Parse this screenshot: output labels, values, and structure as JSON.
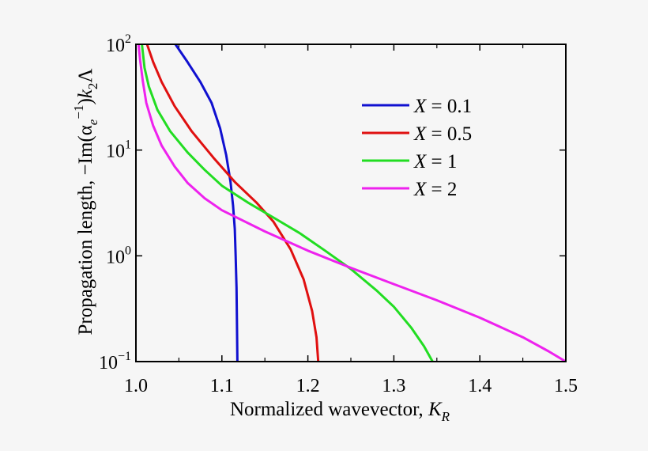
{
  "chart_data": {
    "type": "line",
    "title": "",
    "xlabel": "Normalized wavevector, K_R",
    "ylabel": "Propagation length, −Im(α_e^−1)k_2Λ",
    "xlim": [
      1.0,
      1.5
    ],
    "ylim": [
      0.1,
      100
    ],
    "yscale": "log",
    "grid": false,
    "legend_position": "top-right",
    "x_ticks": [
      1.0,
      1.1,
      1.2,
      1.3,
      1.4,
      1.5
    ],
    "x_tick_labels": [
      "1.0",
      "1.1",
      "1.2",
      "1.3",
      "1.4",
      "1.5"
    ],
    "y_ticks": [
      {
        "value": 0.1,
        "base": "10",
        "exp": "−1"
      },
      {
        "value": 1,
        "base": "10",
        "exp": "0"
      },
      {
        "value": 10,
        "base": "10",
        "exp": "1"
      },
      {
        "value": 100,
        "base": "10",
        "exp": "2"
      }
    ],
    "series": [
      {
        "name": "X = 0.1",
        "color": "#1010d0",
        "points": [
          [
            1.046,
            100
          ],
          [
            1.06,
            68
          ],
          [
            1.075,
            44
          ],
          [
            1.088,
            28
          ],
          [
            1.098,
            16
          ],
          [
            1.105,
            9
          ],
          [
            1.11,
            5
          ],
          [
            1.113,
            3
          ],
          [
            1.115,
            1.8
          ],
          [
            1.116,
            1.0
          ],
          [
            1.117,
            0.5
          ],
          [
            1.1175,
            0.25
          ],
          [
            1.118,
            0.1
          ]
        ]
      },
      {
        "name": "X = 0.5",
        "color": "#e01010",
        "points": [
          [
            1.013,
            100
          ],
          [
            1.02,
            68
          ],
          [
            1.03,
            44
          ],
          [
            1.045,
            26
          ],
          [
            1.065,
            15
          ],
          [
            1.09,
            8.5
          ],
          [
            1.115,
            5.0
          ],
          [
            1.14,
            3.2
          ],
          [
            1.16,
            2.1
          ],
          [
            1.18,
            1.15
          ],
          [
            1.195,
            0.6
          ],
          [
            1.205,
            0.3
          ],
          [
            1.21,
            0.17
          ],
          [
            1.212,
            0.1
          ]
        ]
      },
      {
        "name": "X = 1",
        "color": "#22dd22",
        "points": [
          [
            1.007,
            100
          ],
          [
            1.01,
            60
          ],
          [
            1.015,
            40
          ],
          [
            1.025,
            24
          ],
          [
            1.04,
            15
          ],
          [
            1.06,
            9.5
          ],
          [
            1.08,
            6.5
          ],
          [
            1.1,
            4.6
          ],
          [
            1.13,
            3.2
          ],
          [
            1.16,
            2.3
          ],
          [
            1.19,
            1.65
          ],
          [
            1.22,
            1.12
          ],
          [
            1.25,
            0.75
          ],
          [
            1.28,
            0.47
          ],
          [
            1.3,
            0.33
          ],
          [
            1.32,
            0.21
          ],
          [
            1.335,
            0.14
          ],
          [
            1.345,
            0.1
          ]
        ]
      },
      {
        "name": "X = 2",
        "color": "#ee22ee",
        "points": [
          [
            1.003,
            100
          ],
          [
            1.005,
            70
          ],
          [
            1.008,
            45
          ],
          [
            1.012,
            28
          ],
          [
            1.02,
            17
          ],
          [
            1.03,
            11
          ],
          [
            1.045,
            7
          ],
          [
            1.06,
            4.9
          ],
          [
            1.08,
            3.5
          ],
          [
            1.1,
            2.7
          ],
          [
            1.15,
            1.7
          ],
          [
            1.2,
            1.12
          ],
          [
            1.25,
            0.77
          ],
          [
            1.3,
            0.54
          ],
          [
            1.35,
            0.38
          ],
          [
            1.4,
            0.26
          ],
          [
            1.45,
            0.17
          ],
          [
            1.48,
            0.125
          ],
          [
            1.5,
            0.1
          ]
        ]
      }
    ]
  }
}
